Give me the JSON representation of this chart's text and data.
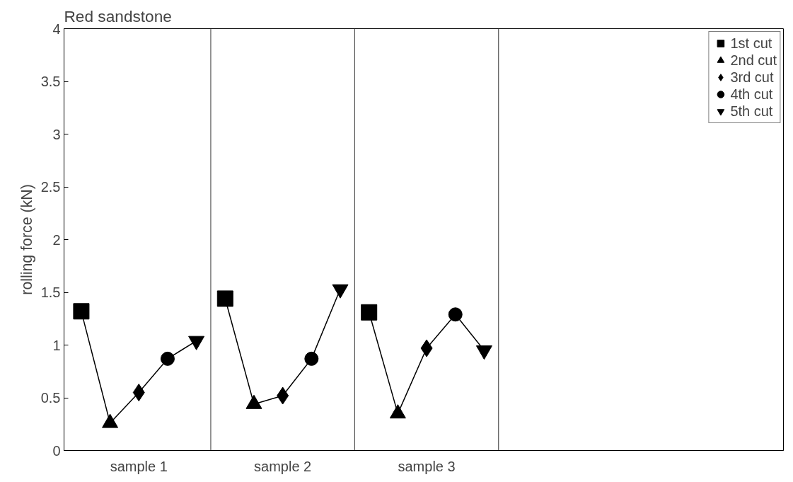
{
  "chart_data": {
    "type": "line",
    "title": "Red sandstone",
    "ylabel": "rolling force (kN)",
    "categories": [
      null,
      null,
      "sample 1",
      null,
      null,
      null,
      null,
      "sample 2",
      null,
      null,
      null,
      null,
      "sample 3",
      null,
      null,
      null,
      null,
      null,
      null,
      null,
      null,
      null,
      null,
      null,
      null
    ],
    "ylim": [
      0,
      4
    ],
    "yticks": [
      0,
      0.5,
      1,
      1.5,
      2,
      2.5,
      3,
      3.5,
      4
    ],
    "grid": false,
    "legend": "top right",
    "series": [
      {
        "color": "#000000",
        "marker": "none",
        "values": [
          1.32,
          0.26,
          0.55,
          0.87,
          1.04,
          null,
          null,
          null,
          null,
          null,
          null,
          null,
          null,
          null,
          null,
          null,
          null,
          null,
          null,
          null,
          null,
          null,
          null,
          null,
          null
        ]
      },
      {
        "color": "#000000",
        "marker": "none",
        "values": [
          null,
          null,
          null,
          null,
          null,
          1.44,
          0.44,
          0.52,
          0.87,
          1.53,
          null,
          null,
          null,
          null,
          null,
          null,
          null,
          null,
          null,
          null,
          null,
          null,
          null,
          null,
          null
        ]
      },
      {
        "color": "#000000",
        "marker": "none",
        "values": [
          null,
          null,
          null,
          null,
          null,
          null,
          null,
          null,
          null,
          null,
          1.31,
          0.35,
          0.97,
          1.29,
          0.95,
          null,
          null,
          null,
          null,
          null,
          null,
          null,
          null,
          null,
          null
        ]
      },
      {
        "type": "scatter",
        "name": "1st cut",
        "color": "#000000",
        "marker": "square",
        "values": [
          1.32,
          null,
          null,
          null,
          null,
          1.44,
          null,
          null,
          null,
          null,
          1.31,
          null,
          null,
          null,
          null,
          null,
          null,
          null,
          null,
          null,
          null,
          null,
          null,
          null,
          null
        ]
      },
      {
        "type": "scatter",
        "name": "2nd cut",
        "color": "#000000",
        "marker": "triangle",
        "values": [
          null,
          0.26,
          null,
          null,
          null,
          null,
          0.44,
          null,
          null,
          null,
          null,
          0.35,
          null,
          null,
          null,
          null,
          null,
          null,
          null,
          null,
          null,
          null,
          null,
          null,
          null
        ]
      },
      {
        "type": "scatter",
        "name": "3rd cut",
        "color": "#000000",
        "marker": "diamond",
        "values": [
          null,
          null,
          0.55,
          null,
          null,
          null,
          null,
          0.52,
          null,
          null,
          null,
          null,
          0.97,
          null,
          null,
          null,
          null,
          null,
          null,
          null,
          null,
          null,
          null,
          null,
          null
        ]
      },
      {
        "type": "scatter",
        "name": "4th cut",
        "color": "#000000",
        "marker": "circle",
        "values": [
          null,
          null,
          null,
          0.87,
          null,
          null,
          null,
          null,
          0.87,
          null,
          null,
          null,
          null,
          1.29,
          null,
          null,
          null,
          null,
          null,
          null,
          null,
          null,
          null,
          null,
          null
        ]
      },
      {
        "type": "scatter",
        "name": "5th cut",
        "color": "#000000",
        "values": [
          null,
          null,
          null,
          null,
          1.04,
          null,
          null,
          null,
          null,
          1.53,
          null,
          null,
          null,
          null,
          0.95,
          null,
          null,
          null,
          null,
          null,
          null,
          null,
          null,
          null,
          null
        ]
      }
    ]
  }
}
